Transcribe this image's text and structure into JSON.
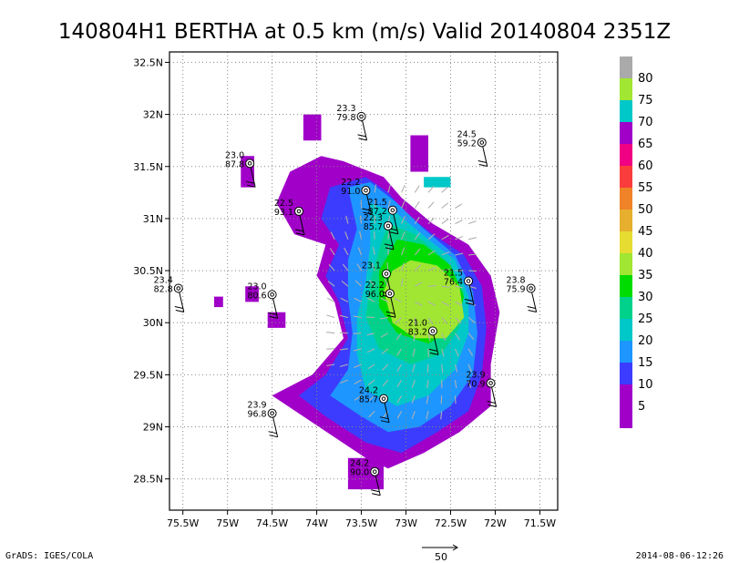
{
  "title": "140804H1 BERTHA at 0.5 km (m/s) Valid 20140804 2351Z",
  "footer": {
    "left": "GrADS: IGES/COLA",
    "right": "2014-08-06-12:26",
    "vector_scale_label": "50"
  },
  "chart_data": {
    "type": "heatmap",
    "title": "140804H1 BERTHA at 0.5 km (m/s) Valid 20140804 2351Z",
    "xlabel": "",
    "ylabel": "",
    "xlim": [
      -75.65,
      -71.3
    ],
    "ylim": [
      28.2,
      32.6
    ],
    "grid": true,
    "x_ticks": [
      {
        "value": -75.5,
        "label": "75.5W"
      },
      {
        "value": -75,
        "label": "75W"
      },
      {
        "value": -74.5,
        "label": "74.5W"
      },
      {
        "value": -74,
        "label": "74W"
      },
      {
        "value": -73.5,
        "label": "73.5W"
      },
      {
        "value": -73,
        "label": "73W"
      },
      {
        "value": -72.5,
        "label": "72.5W"
      },
      {
        "value": -72,
        "label": "72W"
      },
      {
        "value": -71.5,
        "label": "71.5W"
      }
    ],
    "y_ticks": [
      {
        "value": 28.5,
        "label": "28.5N"
      },
      {
        "value": 29,
        "label": "29N"
      },
      {
        "value": 29.5,
        "label": "29.5N"
      },
      {
        "value": 30,
        "label": "30N"
      },
      {
        "value": 30.5,
        "label": "30.5N"
      },
      {
        "value": 31,
        "label": "31N"
      },
      {
        "value": 31.5,
        "label": "31.5N"
      },
      {
        "value": 32,
        "label": "32N"
      },
      {
        "value": 32.5,
        "label": "32.5N"
      }
    ],
    "colorbar": {
      "levels": [
        {
          "value": 80,
          "color": "#a0e632"
        },
        {
          "value": 75,
          "color": "#00c8c8"
        },
        {
          "value": 70,
          "color": "#a000c8"
        },
        {
          "value": 65,
          "color": "#f00082"
        },
        {
          "value": 60,
          "color": "#fa3c3c"
        },
        {
          "value": 55,
          "color": "#f08228"
        },
        {
          "value": 50,
          "color": "#e6af2d"
        },
        {
          "value": 45,
          "color": "#e6dc32"
        },
        {
          "value": 40,
          "color": "#a0e632"
        },
        {
          "value": 35,
          "color": "#00dc00"
        },
        {
          "value": 30,
          "color": "#00d28c"
        },
        {
          "value": 25,
          "color": "#00c8c8"
        },
        {
          "value": 20,
          "color": "#1e96ff"
        },
        {
          "value": 15,
          "color": "#3c3cff"
        },
        {
          "value": 10,
          "color": "#a000c8"
        },
        {
          "value": 5,
          "color": "#a000c8"
        }
      ],
      "top_color": "#aaaaaa"
    },
    "stations": [
      {
        "lon": -73.5,
        "lat": 31.98,
        "temp": "23.3",
        "rh": "79.8"
      },
      {
        "lon": -74.75,
        "lat": 31.53,
        "temp": "23.0",
        "rh": "87.8"
      },
      {
        "lon": -72.15,
        "lat": 31.73,
        "temp": "24.5",
        "rh": "59.2"
      },
      {
        "lon": -73.45,
        "lat": 31.27,
        "temp": "22.2",
        "rh": "91.0"
      },
      {
        "lon": -74.2,
        "lat": 31.07,
        "temp": "22.5",
        "rh": "93.1"
      },
      {
        "lon": -73.15,
        "lat": 31.08,
        "temp": "21.5",
        "rh": "87.2"
      },
      {
        "lon": -73.2,
        "lat": 30.93,
        "temp": "22.3",
        "rh": "85.7"
      },
      {
        "lon": -73.22,
        "lat": 30.47,
        "temp": "23.1",
        "rh": ""
      },
      {
        "lon": -73.18,
        "lat": 30.28,
        "temp": "22.2",
        "rh": "96.0"
      },
      {
        "lon": -72.3,
        "lat": 30.4,
        "temp": "21.5",
        "rh": "76.4"
      },
      {
        "lon": -72.7,
        "lat": 29.92,
        "temp": "21.0",
        "rh": "83.2"
      },
      {
        "lon": -71.6,
        "lat": 30.33,
        "temp": "23.8",
        "rh": "75.9"
      },
      {
        "lon": -75.55,
        "lat": 30.33,
        "temp": "23.4",
        "rh": "82.8"
      },
      {
        "lon": -74.5,
        "lat": 30.27,
        "temp": "23.0",
        "rh": "80.6"
      },
      {
        "lon": -72.05,
        "lat": 29.42,
        "temp": "23.9",
        "rh": "70.9"
      },
      {
        "lon": -73.25,
        "lat": 29.27,
        "temp": "24.2",
        "rh": "85.7"
      },
      {
        "lon": -74.5,
        "lat": 29.13,
        "temp": "23.9",
        "rh": "96.8"
      },
      {
        "lon": -73.35,
        "lat": 28.57,
        "temp": "24.2",
        "rh": "90.0"
      }
    ]
  }
}
